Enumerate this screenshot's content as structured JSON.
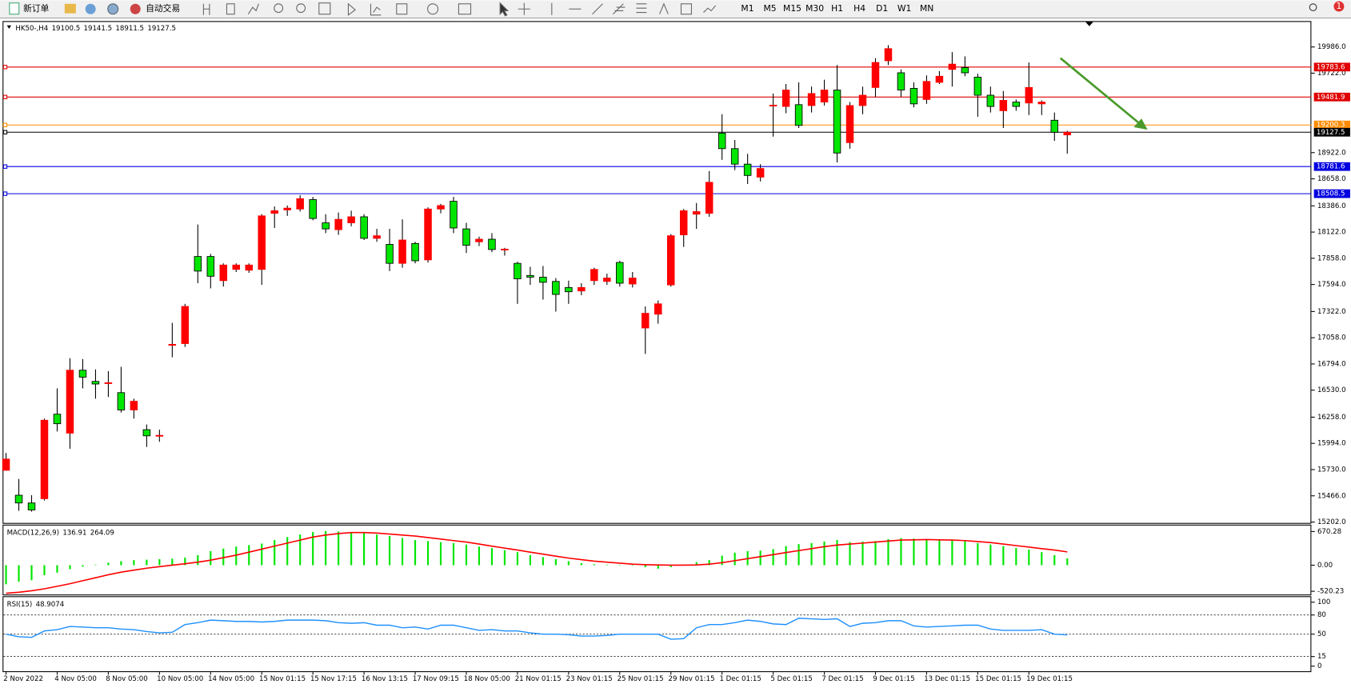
{
  "toolbar": {
    "new_order": "新订单",
    "auto_trade": "自动交易",
    "timeframes": [
      "M1",
      "M5",
      "M15",
      "M30",
      "H1",
      "H4",
      "D1",
      "W1",
      "MN"
    ],
    "alert_count": 1
  },
  "chart_data": [
    {
      "type": "candlestick",
      "title": "HK50-,H4",
      "title_values": [
        19100.5,
        19141.5,
        18911.5,
        19127.5
      ],
      "categories": [
        "2 Nov 2022",
        null,
        null,
        null,
        "4 Nov 05:00",
        null,
        null,
        null,
        "8 Nov 05:00",
        null,
        null,
        null,
        "10 Nov 05:00",
        null,
        null,
        null,
        "14 Nov 05:00",
        null,
        null,
        null,
        "15 Nov 01:15",
        null,
        null,
        null,
        "15 Nov 17:15",
        null,
        null,
        null,
        "16 Nov 13:15",
        null,
        null,
        null,
        "17 Nov 09:15",
        null,
        null,
        null,
        "18 Nov 05:00",
        null,
        null,
        null,
        "21 Nov 01:15",
        null,
        null,
        null,
        "23 Nov 01:15",
        null,
        null,
        null,
        "25 Nov 01:15",
        null,
        null,
        null,
        "29 Nov 01:15",
        null,
        null,
        null,
        "1 Dec 01:15",
        null,
        null,
        null,
        "5 Dec 01:15",
        null,
        null,
        null,
        "7 Dec 01:15",
        null,
        null,
        null,
        "9 Dec 01:15",
        null,
        null,
        null,
        "13 Dec 01:15",
        null,
        null,
        null,
        "15 Dec 01:15",
        null,
        null,
        null,
        "19 Dec 01:15",
        null,
        null,
        null
      ],
      "open": [
        15723,
        15472,
        15394,
        15437,
        16288,
        16097,
        16731,
        16618,
        16600,
        16505,
        16331,
        16132,
        16070,
        16982,
        16999,
        17876,
        17876,
        17633,
        17746,
        17738,
        17746,
        18311,
        18345,
        18354,
        18449,
        18215,
        18146,
        18215,
        18276,
        18059,
        17998,
        17807,
        18007,
        17842,
        18354,
        18432,
        18154,
        18024,
        18050,
        17946,
        17807,
        17685,
        17668,
        17625,
        17564,
        17529,
        17633,
        17625,
        17816,
        17599,
        17156,
        17295,
        17590,
        18094,
        18302,
        18311,
        19118,
        18962,
        18806,
        18675,
        19396,
        19387,
        19405,
        19396,
        19431,
        19552,
        19023,
        19396,
        19578,
        19847,
        19726,
        19569,
        19457,
        19630,
        19760,
        19778,
        19682,
        19500,
        19344,
        19431,
        19422,
        19413,
        19248,
        19100.5
      ],
      "high": [
        15897,
        15636,
        15472,
        16244,
        16548,
        16852,
        16843,
        16739,
        16722,
        16765,
        16444,
        16184,
        16132,
        17208,
        17399,
        18198,
        17902,
        17807,
        17807,
        17807,
        18302,
        18380,
        18389,
        18493,
        18476,
        18302,
        18319,
        18337,
        18302,
        18154,
        18154,
        18250,
        18024,
        18371,
        18406,
        18476,
        18215,
        18076,
        18111,
        17963,
        17824,
        17772,
        17781,
        17659,
        17633,
        17607,
        17763,
        17703,
        17833,
        17720,
        17373,
        17434,
        18102,
        18354,
        18415,
        18736,
        19309,
        19049,
        18910,
        18806,
        19517,
        19613,
        19630,
        19587,
        19656,
        19804,
        19431,
        19587,
        19873,
        20004,
        19760,
        19630,
        19700,
        19743,
        19934,
        19891,
        19717,
        19587,
        19543,
        19457,
        19830,
        19448,
        19326,
        19141.5
      ],
      "low": [
        15720,
        15315,
        15307,
        15419,
        16114,
        15940,
        16548,
        16444,
        16461,
        16305,
        16244,
        15958,
        16010,
        16861,
        16965,
        17607,
        17555,
        17573,
        17720,
        17711,
        17590,
        18163,
        18285,
        18328,
        18241,
        18111,
        18094,
        18180,
        18042,
        18024,
        17729,
        17763,
        17807,
        17815,
        18311,
        18111,
        17911,
        17981,
        17920,
        17885,
        17399,
        17590,
        17442,
        17321,
        17399,
        17486,
        17590,
        17590,
        17573,
        17564,
        16895,
        17199,
        17573,
        17972,
        18154,
        18276,
        18849,
        18746,
        18606,
        18632,
        19083,
        19318,
        19170,
        19326,
        19396,
        18823,
        18962,
        19309,
        19483,
        19804,
        19483,
        19378,
        19413,
        19613,
        19587,
        19691,
        19283,
        19326,
        19170,
        19344,
        19300,
        19300,
        19040,
        18911.5
      ],
      "close": [
        15836,
        15394,
        15324,
        16227,
        16192,
        16731,
        16661,
        16592,
        16605,
        16331,
        16418,
        16070,
        16075,
        16991,
        17373,
        17729,
        17677,
        17790,
        17790,
        17790,
        18285,
        18337,
        18363,
        18458,
        18259,
        18154,
        18250,
        18276,
        18059,
        18085,
        17807,
        18042,
        17833,
        18354,
        18389,
        18163,
        17989,
        18050,
        17946,
        17950,
        17651,
        17668,
        17616,
        17494,
        17521,
        17564,
        17746,
        17659,
        17607,
        17659,
        17304,
        17399,
        18085,
        18337,
        18328,
        18623,
        18962,
        18806,
        18692,
        18762,
        19400,
        19552,
        19196,
        19517,
        19552,
        18918,
        19396,
        19500,
        19830,
        19969,
        19552,
        19413,
        19639,
        19691,
        19813,
        19726,
        19500,
        19387,
        19448,
        19387,
        19578,
        19431,
        19127,
        19127.5
      ],
      "up_color": "#ff0000",
      "down_color": "#00e600",
      "ylim": [
        15193,
        20238
      ],
      "yticks": [
        {
          "value": 19986,
          "label": "19986.0"
        },
        {
          "value": 19722,
          "label": "19722.0"
        },
        {
          "value": 18922,
          "label": "18922.0"
        },
        {
          "value": 18658,
          "label": "18658.0"
        },
        {
          "value": 18386,
          "label": "18386.0"
        },
        {
          "value": 18122,
          "label": "18122.0"
        },
        {
          "value": 17858,
          "label": "17858.0"
        },
        {
          "value": 17594,
          "label": "17594.0"
        },
        {
          "value": 17322,
          "label": "17322.0"
        },
        {
          "value": 17058,
          "label": "17058.0"
        },
        {
          "value": 16794,
          "label": "16794.0"
        },
        {
          "value": 16530,
          "label": "16530.0"
        },
        {
          "value": 16258,
          "label": "16258.0"
        },
        {
          "value": 15994,
          "label": "15994.0"
        },
        {
          "value": 15730,
          "label": "15730.0"
        },
        {
          "value": 15466,
          "label": "15466.0"
        },
        {
          "value": 15202,
          "label": "15202.0"
        }
      ],
      "levels": [
        {
          "value": 19783.6,
          "color": "#e00000"
        },
        {
          "value": 19481.9,
          "color": "#e00000"
        },
        {
          "value": 19200.3,
          "color": "#ff8c00"
        },
        {
          "value": 19127.5,
          "color": "#000000"
        },
        {
          "value": 18781.6,
          "color": "#0000e0"
        },
        {
          "value": 18508.5,
          "color": "#0000e0"
        }
      ]
    },
    {
      "type": "macd",
      "title": "MACD(12,26,9)",
      "title_values": [
        136.91,
        264.09
      ],
      "histogram": [
        -380,
        -330,
        -300,
        -200,
        -150,
        -80,
        -30,
        10,
        50,
        80,
        100,
        110,
        120,
        130,
        150,
        200,
        280,
        330,
        370,
        400,
        430,
        500,
        560,
        610,
        660,
        680,
        670,
        660,
        640,
        610,
        580,
        540,
        500,
        480,
        460,
        440,
        410,
        370,
        340,
        300,
        260,
        200,
        160,
        120,
        80,
        40,
        20,
        10,
        0,
        -10,
        -40,
        -70,
        -40,
        10,
        60,
        100,
        190,
        250,
        280,
        290,
        320,
        380,
        420,
        440,
        470,
        500,
        460,
        470,
        480,
        520,
        540,
        530,
        510,
        500,
        490,
        480,
        440,
        410,
        380,
        340,
        310,
        260,
        200,
        136.91
      ],
      "signal": [
        -560,
        -540,
        -510,
        -470,
        -420,
        -370,
        -310,
        -250,
        -190,
        -140,
        -100,
        -60,
        -30,
        0,
        30,
        60,
        100,
        150,
        200,
        260,
        320,
        380,
        440,
        500,
        560,
        600,
        630,
        650,
        650,
        640,
        620,
        600,
        580,
        550,
        520,
        490,
        460,
        420,
        380,
        340,
        300,
        260,
        220,
        180,
        140,
        110,
        80,
        60,
        40,
        20,
        10,
        5,
        0,
        0,
        5,
        20,
        50,
        90,
        130,
        170,
        210,
        250,
        290,
        330,
        370,
        400,
        420,
        440,
        460,
        480,
        500,
        505,
        510,
        505,
        500,
        490,
        470,
        450,
        420,
        390,
        360,
        330,
        300,
        264.09
      ],
      "histogram_color": "#00e600",
      "signal_color": "#ff0000",
      "ylim": [
        -584,
        790
      ],
      "yticks": [
        670.28,
        {
          "value": 0,
          "label": "0.00"
        },
        -520.23
      ]
    },
    {
      "type": "rsi",
      "title": "RSI(15)",
      "title_values": [
        48.9074
      ],
      "values": [
        50,
        46,
        45,
        55,
        57,
        62,
        61,
        60,
        60,
        58,
        57,
        54,
        52,
        53,
        65,
        68,
        72,
        71,
        70,
        70,
        69,
        70,
        72,
        72,
        72,
        71,
        68,
        67,
        68,
        64,
        64,
        60,
        61,
        58,
        64,
        64,
        60,
        56,
        57,
        55,
        55,
        52,
        50,
        50,
        49,
        47,
        47,
        48,
        50,
        50,
        50,
        50,
        42,
        43,
        60,
        65,
        65,
        68,
        72,
        70,
        66,
        65,
        75,
        74,
        73,
        74,
        62,
        67,
        68,
        71,
        71,
        63,
        61,
        62,
        63,
        64,
        64,
        58,
        56,
        56,
        56,
        57,
        50,
        48.9074
      ],
      "color": "#1e90ff",
      "ylim": [
        -8,
        108
      ],
      "yticks": [
        100,
        80,
        50,
        15,
        0
      ],
      "levels": [
        80,
        50,
        15
      ]
    }
  ]
}
